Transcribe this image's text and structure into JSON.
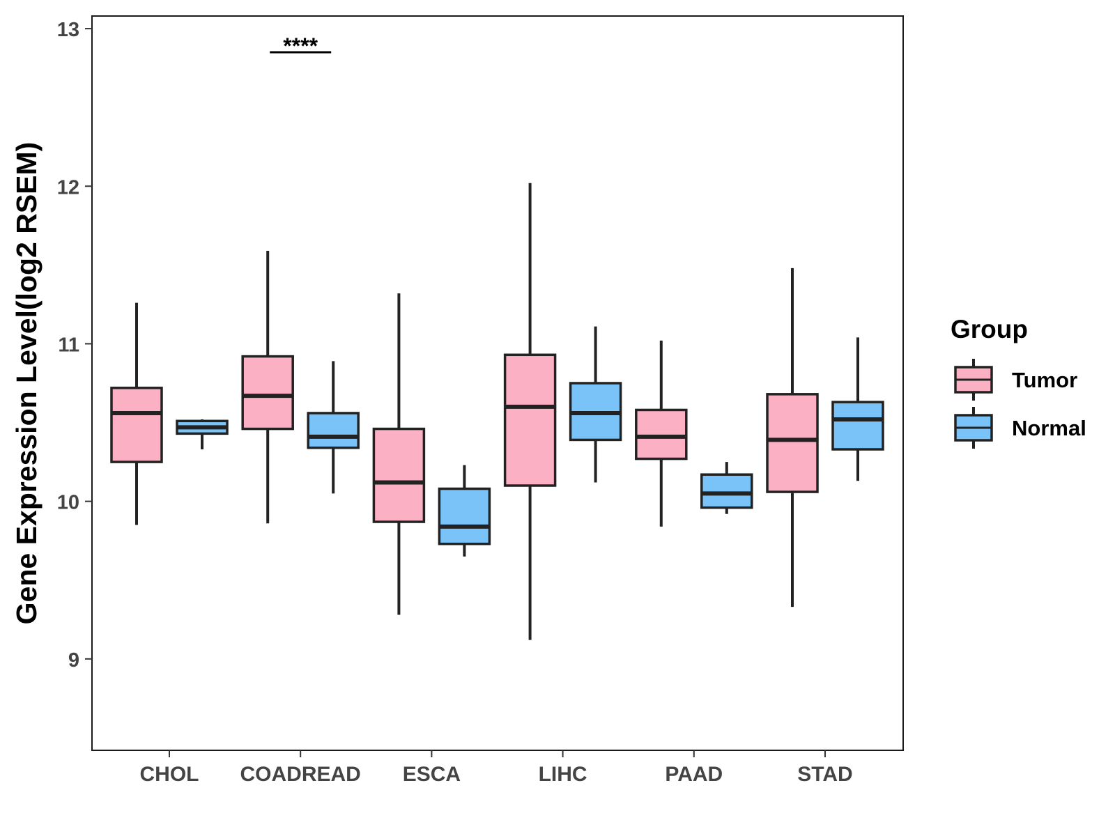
{
  "chart_data": {
    "type": "boxplot",
    "ylabel": "Gene Expression Level(log2 RSEM)",
    "xlabel": "",
    "ylim": [
      8.42,
      13.08
    ],
    "yticks": [
      "9",
      "10",
      "11",
      "12",
      "13"
    ],
    "categories": [
      "CHOL",
      "COADREAD",
      "ESCA",
      "LIHC",
      "PAAD",
      "STAD"
    ],
    "legend": {
      "title": "Group",
      "position": "right",
      "entries": [
        {
          "name": "Tumor",
          "color": "#FBB0C3"
        },
        {
          "name": "Normal",
          "color": "#7AC3F9"
        }
      ]
    },
    "series": [
      {
        "name": "Tumor",
        "color": "#FBB0C3",
        "boxes": [
          {
            "category": "CHOL",
            "min": 9.85,
            "q1": 10.25,
            "median": 10.56,
            "q3": 10.72,
            "max": 11.26
          },
          {
            "category": "COADREAD",
            "min": 9.86,
            "q1": 10.46,
            "median": 10.67,
            "q3": 10.92,
            "max": 11.59
          },
          {
            "category": "ESCA",
            "min": 9.28,
            "q1": 9.87,
            "median": 10.12,
            "q3": 10.46,
            "max": 11.32
          },
          {
            "category": "LIHC",
            "min": 9.12,
            "q1": 10.1,
            "median": 10.6,
            "q3": 10.93,
            "max": 12.02
          },
          {
            "category": "PAAD",
            "min": 9.84,
            "q1": 10.27,
            "median": 10.41,
            "q3": 10.58,
            "max": 11.02
          },
          {
            "category": "STAD",
            "min": 9.33,
            "q1": 10.06,
            "median": 10.39,
            "q3": 10.68,
            "max": 11.48
          }
        ]
      },
      {
        "name": "Normal",
        "color": "#7AC3F9",
        "boxes": [
          {
            "category": "CHOL",
            "min": 10.33,
            "q1": 10.43,
            "median": 10.47,
            "q3": 10.51,
            "max": 10.52
          },
          {
            "category": "COADREAD",
            "min": 10.05,
            "q1": 10.34,
            "median": 10.41,
            "q3": 10.56,
            "max": 10.89
          },
          {
            "category": "ESCA",
            "min": 9.65,
            "q1": 9.73,
            "median": 9.84,
            "q3": 10.08,
            "max": 10.23
          },
          {
            "category": "LIHC",
            "min": 10.12,
            "q1": 10.39,
            "median": 10.56,
            "q3": 10.75,
            "max": 11.11
          },
          {
            "category": "PAAD",
            "min": 9.92,
            "q1": 9.96,
            "median": 10.05,
            "q3": 10.17,
            "max": 10.25
          },
          {
            "category": "STAD",
            "min": 10.13,
            "q1": 10.33,
            "median": 10.52,
            "q3": 10.63,
            "max": 11.04
          }
        ]
      }
    ],
    "annotations": [
      {
        "category": "COADREAD",
        "label": "****",
        "y": 12.85
      }
    ]
  }
}
